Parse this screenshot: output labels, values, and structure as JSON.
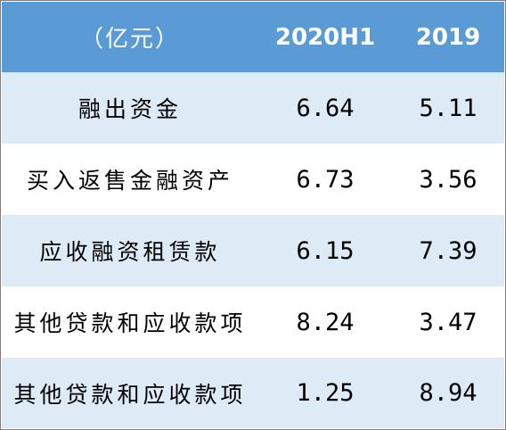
{
  "header": {
    "col_label": "（亿元）",
    "col_2020h1": "2020H1",
    "col_2019": "2019"
  },
  "rows": [
    {
      "label": "融出资金",
      "v2020h1": "6.64",
      "v2019": "5.11"
    },
    {
      "label": "买入返售金融资产",
      "v2020h1": "6.73",
      "v2019": "3.56"
    },
    {
      "label": "应收融资租赁款",
      "v2020h1": "6.15",
      "v2019": "7.39"
    },
    {
      "label": "其他贷款和应收款项",
      "v2020h1": "8.24",
      "v2019": "3.47"
    },
    {
      "label": "其他贷款和应收款项",
      "v2020h1": "1.25",
      "v2019": "8.94"
    }
  ],
  "colors": {
    "header_bg": "#5b9bd5",
    "band_light": "#deeaf6",
    "band_white": "#ffffff"
  }
}
